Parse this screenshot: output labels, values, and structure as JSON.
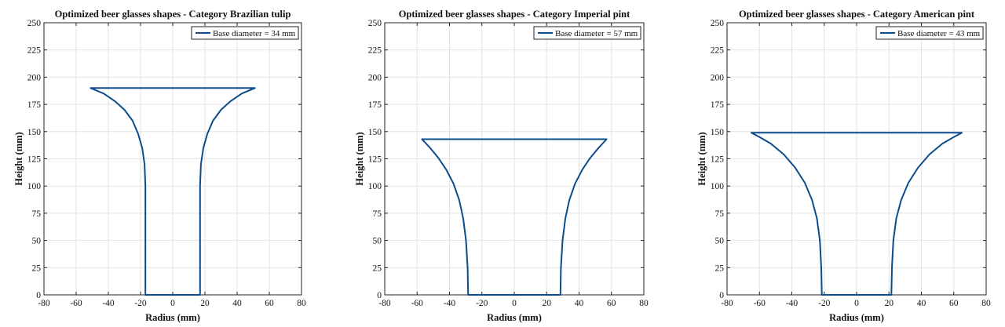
{
  "chart_data": [
    {
      "type": "line",
      "title": "Optimized beer glasses shapes - Category Brazilian tulip",
      "xlabel": "Radius (mm)",
      "ylabel": "Height (mm)",
      "xlim": [
        -80,
        80
      ],
      "ylim": [
        0,
        250
      ],
      "xticks": [
        -80,
        -60,
        -40,
        -20,
        0,
        20,
        40,
        60,
        80
      ],
      "yticks": [
        0,
        25,
        50,
        75,
        100,
        125,
        150,
        175,
        200,
        225,
        250
      ],
      "grid": true,
      "legend_position": "top-right",
      "series": [
        {
          "name": "Base diameter =  34 mm",
          "color": "#0b4c8c",
          "right_profile": [
            [
              17,
              0
            ],
            [
              17,
              100
            ],
            [
              17.5,
              120
            ],
            [
              19,
              135
            ],
            [
              21.5,
              148
            ],
            [
              25,
              160
            ],
            [
              30,
              170
            ],
            [
              36,
              178
            ],
            [
              43,
              185
            ],
            [
              51,
              190
            ]
          ],
          "rim_height": 190
        }
      ]
    },
    {
      "type": "line",
      "title": "Optimized beer glasses shapes - Category Imperial pint",
      "xlabel": "Radius (mm)",
      "ylabel": "Height (mm)",
      "xlim": [
        -80,
        80
      ],
      "ylim": [
        0,
        250
      ],
      "xticks": [
        -80,
        -60,
        -40,
        -20,
        0,
        20,
        40,
        60,
        80
      ],
      "yticks": [
        0,
        25,
        50,
        75,
        100,
        125,
        150,
        175,
        200,
        225,
        250
      ],
      "grid": true,
      "legend_position": "top-right",
      "series": [
        {
          "name": "Base diameter =  57 mm",
          "color": "#0b4c8c",
          "right_profile": [
            [
              28.5,
              0
            ],
            [
              28.8,
              25
            ],
            [
              29.8,
              50
            ],
            [
              31.5,
              70
            ],
            [
              34,
              87
            ],
            [
              37.5,
              102
            ],
            [
              42,
              115
            ],
            [
              47,
              126
            ],
            [
              52,
              135
            ],
            [
              57,
              143
            ]
          ],
          "rim_height": 143
        }
      ]
    },
    {
      "type": "line",
      "title": "Optimized beer glasses shapes - Category American pint",
      "xlabel": "Radius (mm)",
      "ylabel": "Height (mm)",
      "xlim": [
        -80,
        80
      ],
      "ylim": [
        0,
        250
      ],
      "xticks": [
        -80,
        -60,
        -40,
        -20,
        0,
        20,
        40,
        60,
        80
      ],
      "yticks": [
        0,
        25,
        50,
        75,
        100,
        125,
        150,
        175,
        200,
        225,
        250
      ],
      "grid": true,
      "legend_position": "top-right",
      "series": [
        {
          "name": "Base diameter =  43 mm",
          "color": "#0b4c8c",
          "right_profile": [
            [
              21.5,
              0
            ],
            [
              21.8,
              25
            ],
            [
              22.7,
              50
            ],
            [
              24.5,
              70
            ],
            [
              27.5,
              87
            ],
            [
              32,
              103
            ],
            [
              38,
              117
            ],
            [
              45,
              129
            ],
            [
              53,
              139
            ],
            [
              60,
              145
            ],
            [
              65,
              149
            ]
          ],
          "rim_height": 149
        }
      ]
    }
  ]
}
